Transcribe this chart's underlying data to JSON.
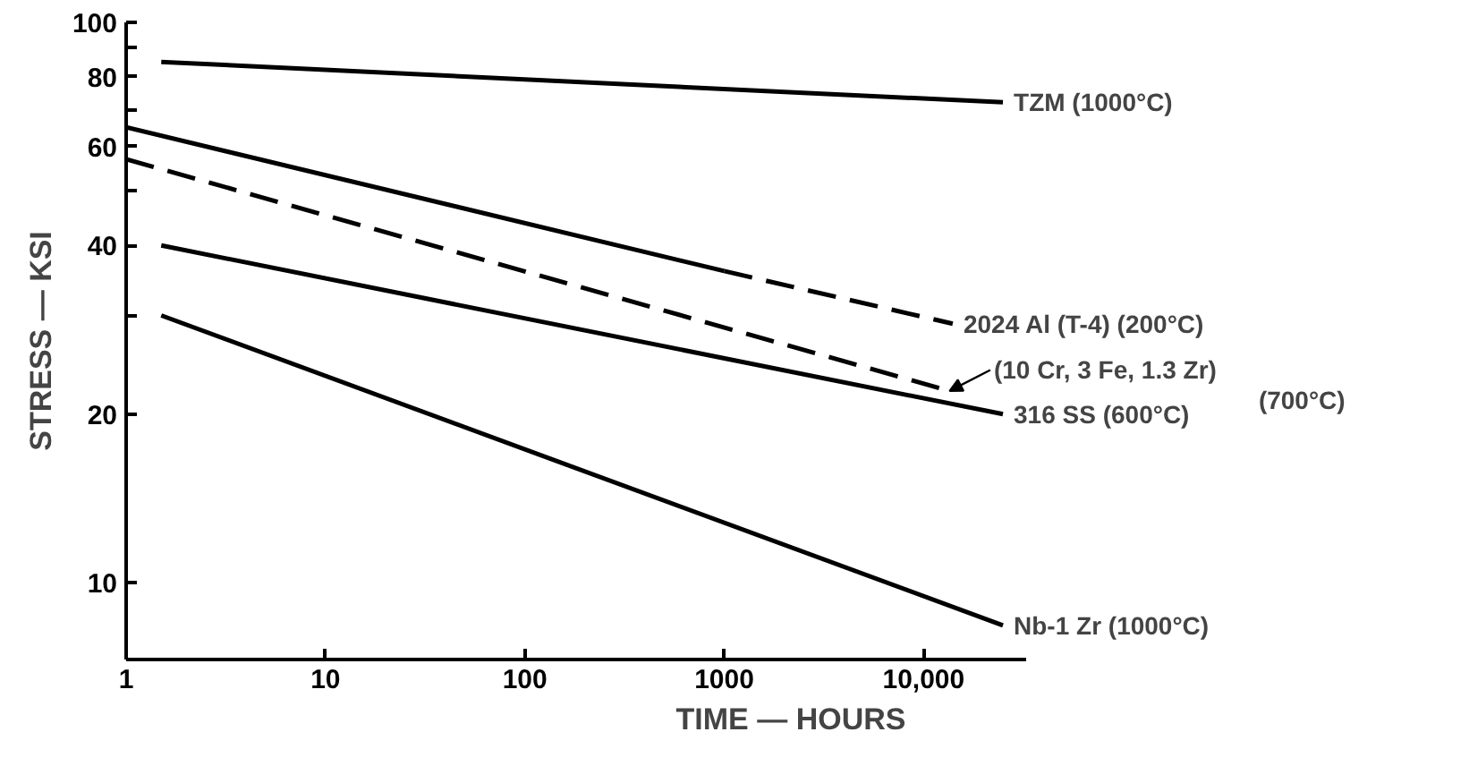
{
  "chart_data": {
    "type": "line",
    "xlabel": "TIME — HOURS",
    "ylabel": "STRESS — KSI",
    "log": "xy",
    "grid": false,
    "xlim": [
      1,
      33000
    ],
    "ylim": [
      7.3,
      100
    ],
    "xticks": [
      {
        "value": 1,
        "label": "1"
      },
      {
        "value": 10,
        "label": "10"
      },
      {
        "value": 100,
        "label": "100"
      },
      {
        "value": 1000,
        "label": "1000"
      },
      {
        "value": 10000,
        "label": "10,000"
      }
    ],
    "yticks": [
      10,
      20,
      {
        "value": 30,
        "label": null
      },
      40,
      {
        "value": 50,
        "label": null
      },
      60,
      {
        "value": 70,
        "label": null
      },
      80,
      {
        "value": 90,
        "label": null
      },
      100
    ],
    "series": [
      {
        "name": "TZM (1000°C)",
        "color": "#000000",
        "x": [
          1.5,
          25000
        ],
        "values": [
          85,
          72
        ],
        "line_style": "solid"
      },
      {
        "color": "#000000",
        "x": [
          1,
          1000
        ],
        "values": [
          65,
          36
        ],
        "line_style": "solid"
      },
      {
        "name": "2024 Al (T-4) (200°C)",
        "color": "#000000",
        "x": [
          1000,
          14000
        ],
        "values": [
          36,
          29
        ],
        "line_style": "dashed"
      },
      {
        "name": "(10 Cr, 3 Fe, 1.3 Zr)\n(700°C)",
        "color": "#000000",
        "x": [
          1,
          13500
        ],
        "values": [
          57,
          22
        ],
        "line_style": "dashed"
      },
      {
        "name": "316 SS (600°C)",
        "color": "#000000",
        "x": [
          1.5,
          25000
        ],
        "values": [
          40,
          20
        ],
        "line_style": "solid"
      },
      {
        "name": "Nb-1 Zr (1000°C)",
        "color": "#000000",
        "x": [
          1.5,
          25000
        ],
        "values": [
          30,
          8.4
        ],
        "line_style": "solid"
      }
    ]
  }
}
